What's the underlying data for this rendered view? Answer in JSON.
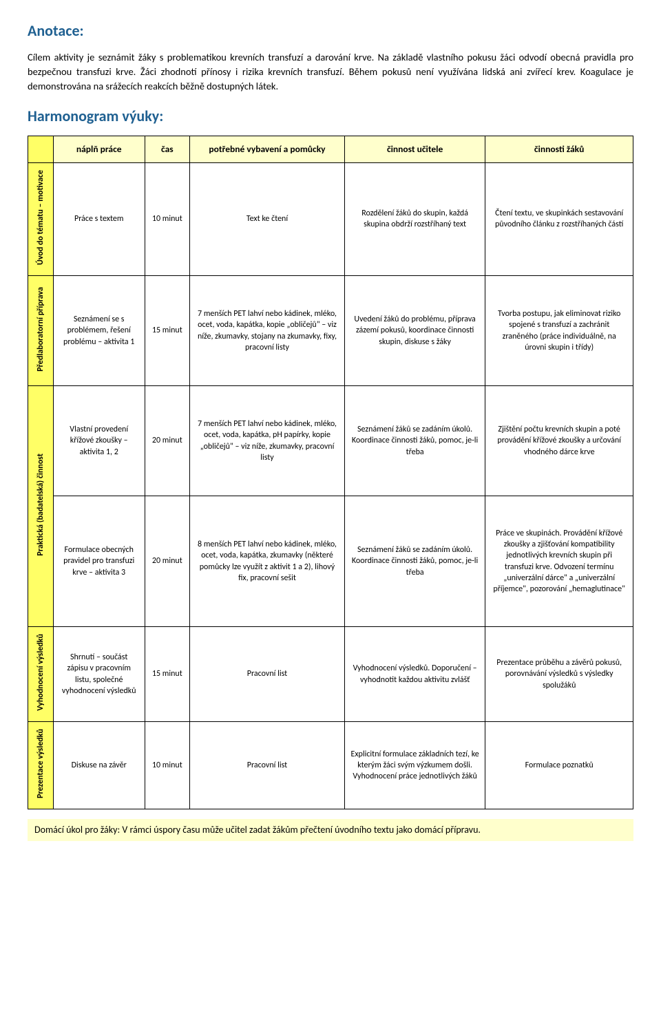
{
  "annotation": {
    "heading": "Anotace:",
    "text": "Cílem aktivity je seznámit žáky s problematikou krevních transfuzí a darování krve. Na základě vlastního pokusu žáci odvodí obecná pravidla pro bezpečnou transfuzi krve. Žáci zhodnotí přínosy i rizika krevních transfuzí. Během pokusů není využívána lidská ani zvířecí krev. Koagulace je demonstrována na srážecích reakcích běžně dostupných látek."
  },
  "harmonogram": {
    "heading": "Harmonogram výuky:",
    "columns": {
      "task": "náplň práce",
      "time": "čas",
      "equip": "potřebné vybavení a pomůcky",
      "teacher": "činnost učitele",
      "students": "činnosti žáků"
    },
    "phases": [
      {
        "label": "Úvod do tématu – motivace",
        "rows": [
          {
            "task": "Práce s textem",
            "time": "10 minut",
            "equip": "Text ke čtení",
            "teacher": "Rozdělení žáků do skupin, každá skupina obdrží rozstříhaný text",
            "students": "Čtení textu, ve skupinkách sestavování původního článku z rozstříhaných částí"
          }
        ]
      },
      {
        "label": "Předlaboratorní příprava",
        "rows": [
          {
            "task": "Seznámení se s problémem, řešení problému – aktivita 1",
            "time": "15 minut",
            "equip": "7 menších PET lahví nebo kádinek, mléko, ocet, voda, kapátka, kopie „obličejů\" – viz níže, zkumavky, stojany na zkumavky, fixy, pracovní listy",
            "teacher": "Uvedení žáků do problému, příprava zázemí pokusů, koordinace činnosti skupin, diskuse s žáky",
            "students": "Tvorba postupu, jak eliminovat riziko spojené s transfuzí a zachránit zraněného (práce individuálně, na úrovni skupin i třídy)"
          }
        ]
      },
      {
        "label": "Praktická (badatelská) činnost",
        "rows": [
          {
            "task": "Vlastní provedení křížové zkoušky – aktivita 1, 2",
            "time": "20 minut",
            "equip": "7 menších PET lahví nebo kádinek, mléko, ocet, voda, kapátka, pH papírky, kopie „obličejů\" – viz níže, zkumavky, pracovní listy",
            "teacher": "Seznámení žáků se zadáním úkolů. Koordinace činnosti žáků, pomoc, je-li třeba",
            "students": "Zjištění počtu krevních skupin a poté provádění křížové zkoušky a určování vhodného dárce krve"
          },
          {
            "task": "Formulace obecných pravidel pro transfuzi krve – aktivita 3",
            "time": "20 minut",
            "equip": "8 menších PET lahví nebo kádinek, mléko, ocet, voda, kapátka, zkumavky (některé pomůcky lze využít z aktivit 1 a 2), lihový fix, pracovní sešit",
            "teacher": "Seznámení žáků se zadáním úkolů. Koordinace činnosti žáků, pomoc, je-li třeba",
            "students": "Práce ve skupinách. Provádění křížové zkoušky a zjišťování kompatibility jednotlivých krevních skupin při transfuzi krve. Odvození termínu „univerzální dárce\" a „univerzální příjemce\", pozorování „hemaglutinace\""
          }
        ]
      },
      {
        "label": "Vyhodnocení výsledků",
        "rows": [
          {
            "task": "Shrnutí – součást zápisu v pracovním listu, společné vyhodnocení výsledků",
            "time": "15 minut",
            "equip": "Pracovní list",
            "teacher": "Vyhodnocení výsledků. Doporučení – vyhodnotit každou aktivitu zvlášť",
            "students": "Prezentace průběhu a závěrů pokusů, porovnávání výsledků s výsledky spolužáků"
          }
        ]
      },
      {
        "label": "Prezentace výsledků",
        "rows": [
          {
            "task": "Diskuse na závěr",
            "time": "10 minut",
            "equip": "Pracovní list",
            "teacher": "Explicitní formulace základních tezí, ke kterým žáci svým výzkumem došli. Vyhodnocení práce jednotlivých žáků",
            "students": "Formulace poznatků"
          }
        ]
      }
    ]
  },
  "homework": {
    "label": "Domácí úkol pro žáky:",
    "text": "V rámci úspory času může učitel zadat žákům přečtení úvodního textu jako domácí přípravu."
  },
  "colors": {
    "heading": "#1f6091",
    "header_bg_corner": "#ffff66",
    "header_bg": "#ffffcc",
    "phase_bg": "#ffff66",
    "homework_bg": "#ffffcc",
    "border": "#000000",
    "text": "#000000"
  }
}
